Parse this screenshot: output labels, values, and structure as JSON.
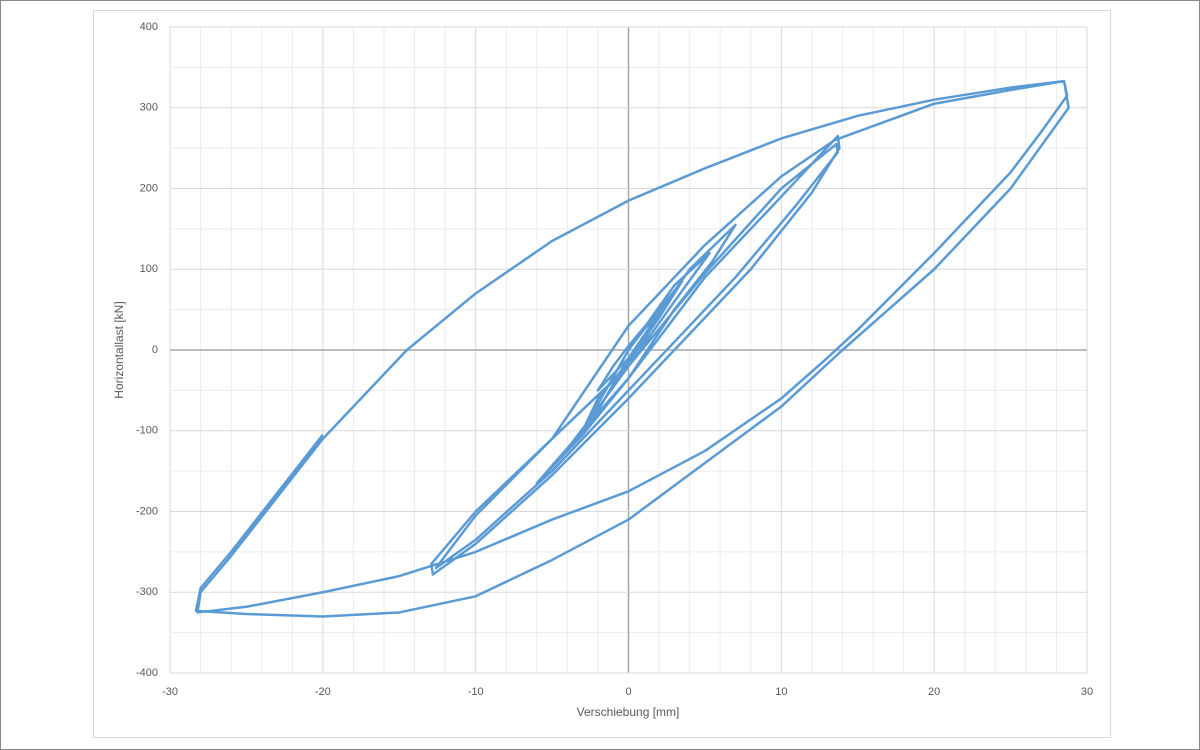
{
  "chart_data": {
    "type": "line",
    "x_label": "Verschiebung  [mm]",
    "y_label": "Horizontallast [kN]",
    "x": [
      0,
      1,
      2,
      1,
      0,
      -1,
      -2,
      -1,
      0,
      2,
      3.5,
      2,
      0,
      -2,
      -3,
      -1.5,
      0,
      3,
      5.3,
      3,
      0,
      -2.5,
      -4.5,
      -2,
      0,
      4,
      7,
      5.5,
      3,
      0,
      -3,
      -6,
      -3,
      0,
      5,
      10,
      13.7,
      13.8,
      12,
      8,
      4,
      0,
      -5,
      -10,
      -12.8,
      -12.9,
      -10,
      -5,
      0,
      5,
      10,
      13.6,
      13.7,
      11,
      7,
      3,
      0,
      -5,
      -10,
      -12.6,
      -10,
      -5,
      0,
      5,
      10,
      13.5,
      20,
      25,
      28.5,
      28.7,
      27,
      25,
      20,
      15,
      13,
      10,
      5,
      0,
      -5,
      -10,
      -15,
      -20,
      -25,
      -28.2,
      -28,
      -26,
      -20,
      -14.5,
      -10,
      -5,
      0,
      5,
      10,
      15,
      20,
      25,
      28.5,
      28.8,
      25,
      20,
      14,
      10,
      5,
      0,
      -5,
      -10,
      -15,
      -20,
      -25,
      -28.3,
      -28,
      -26,
      -20
    ],
    "values": [
      0,
      25,
      45,
      10,
      -10,
      -30,
      -50,
      -20,
      5,
      50,
      85,
      40,
      -15,
      -60,
      -100,
      -50,
      0,
      80,
      120,
      60,
      -20,
      -85,
      -135,
      -75,
      -10,
      100,
      155,
      110,
      50,
      -35,
      -100,
      -165,
      -105,
      -35,
      90,
      190,
      265,
      250,
      195,
      100,
      20,
      -60,
      -155,
      -240,
      -278,
      -265,
      -200,
      -110,
      -20,
      95,
      200,
      255,
      245,
      180,
      90,
      10,
      -50,
      -150,
      -235,
      -270,
      -205,
      -110,
      30,
      130,
      215,
      260,
      305,
      322,
      333,
      315,
      270,
      220,
      120,
      25,
      -10,
      -60,
      -125,
      -175,
      -210,
      -250,
      -280,
      -300,
      -318,
      -325,
      -300,
      -255,
      -110,
      0,
      70,
      135,
      185,
      225,
      262,
      290,
      310,
      325,
      333,
      300,
      200,
      100,
      0,
      -70,
      -140,
      -210,
      -260,
      -305,
      -325,
      -330,
      -327,
      -323,
      -295,
      -250,
      -105
    ],
    "color": "#5b9bd5",
    "xlim": [
      -30,
      30
    ],
    "xticks": [
      -30,
      -20,
      -10,
      0,
      10,
      20,
      30
    ],
    "ylim": [
      -400,
      400
    ],
    "yticks": [
      -400,
      -300,
      -200,
      -100,
      0,
      100,
      200,
      300,
      400
    ],
    "grid": true
  }
}
